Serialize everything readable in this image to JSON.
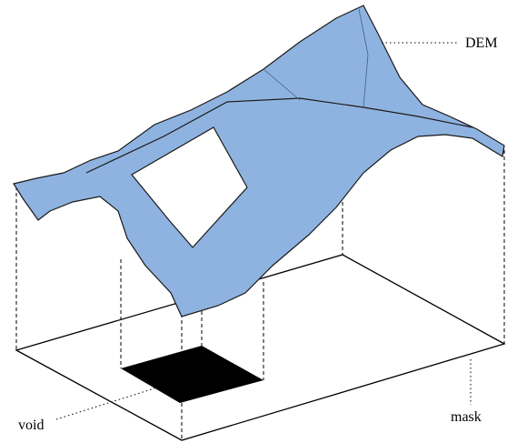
{
  "labels": {
    "dem": "DEM",
    "void": "void",
    "mask": "mask"
  }
}
